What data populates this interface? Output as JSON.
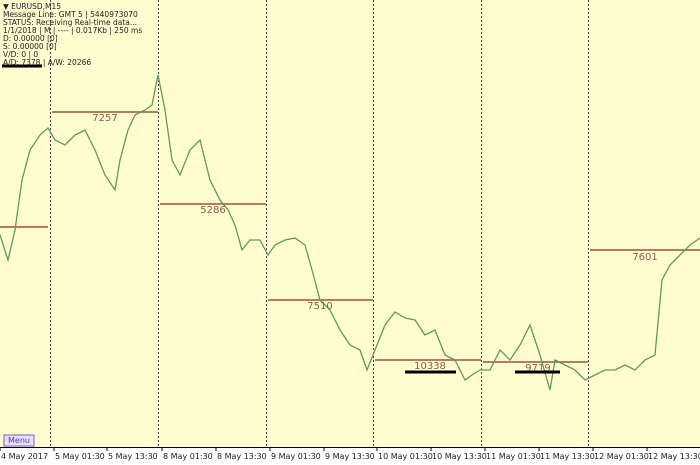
{
  "info_panel": {
    "lines": [
      "▼ EURUSD,M15",
      "Message Line: GMT 5 | 5440973070",
      "STATUS: Receiving Real-time data...",
      "1/1/2018 | M | ---- | 0.017Kb | 250 ms",
      "D: 0.00000  [0]",
      "S: 0.00000  [0]",
      "V/D: 0 | 0",
      "A/D: 7378 | A/W: 20266"
    ]
  },
  "level_labels": [
    "7257",
    "5286",
    "7510",
    "10338",
    "9719",
    "7601"
  ],
  "x_axis": {
    "labels": [
      "4 May 2017",
      "5 May 01:30",
      "5 May 13:30",
      "8 May 01:30",
      "8 May 13:30",
      "9 May 01:30",
      "9 May 13:30",
      "10 May 01:30",
      "10 May 13:30",
      "11 May 01:30",
      "11 May 13:30",
      "12 May 01:30",
      "12 May 13:30"
    ]
  },
  "menu_button": "Menu"
}
